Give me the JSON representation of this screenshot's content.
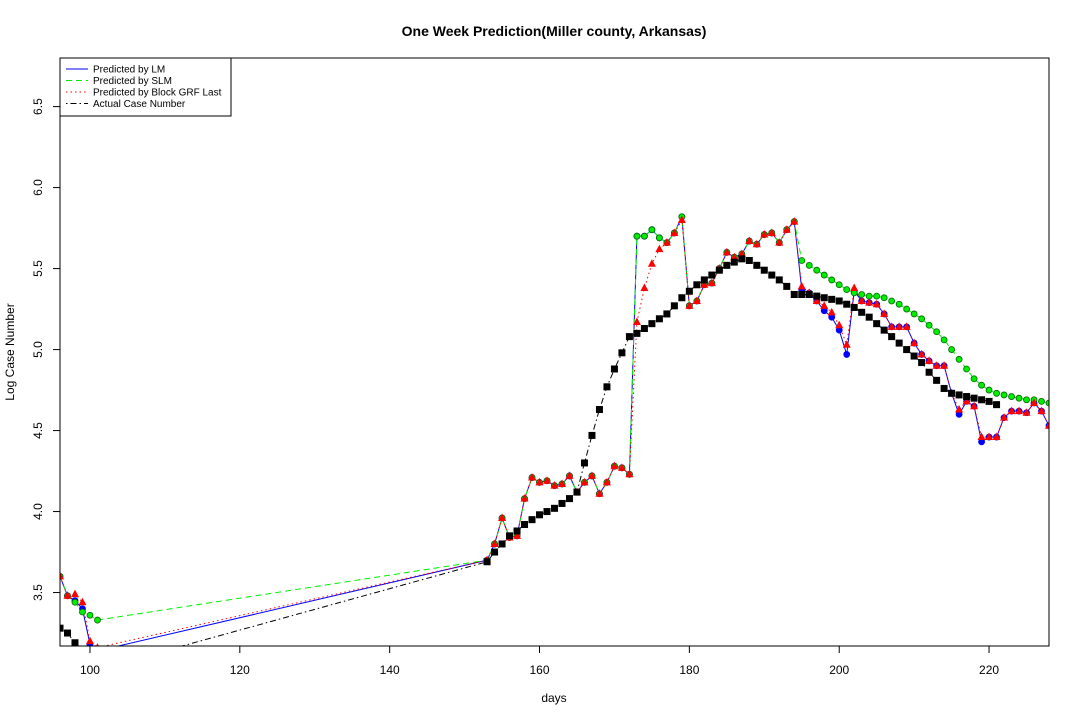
{
  "chart_data": {
    "type": "line",
    "title": "One Week Prediction(Miller county, Arkansas)",
    "x_label": "days",
    "y_label": "Log Case Number",
    "xlim": [
      96,
      228
    ],
    "ylim": [
      3.17,
      6.8
    ],
    "xticks": [
      100,
      120,
      140,
      160,
      180,
      200,
      220
    ],
    "yticks": [
      3.5,
      {
        "value": 4,
        "label": "4.0"
      },
      4.5,
      {
        "value": 5,
        "label": "5.0"
      },
      5.5,
      {
        "value": 6,
        "label": "6.0"
      },
      6.5
    ],
    "legend": "topleft",
    "series": [
      {
        "name": "Predicted by LM",
        "color": "#0000ff",
        "line_style": "solid",
        "marker": "circle",
        "x": [
          96,
          97,
          98,
          99,
          100,
          101,
          153,
          154,
          155,
          156,
          157,
          158,
          159,
          160,
          161,
          162,
          163,
          164,
          165,
          166,
          167,
          168,
          169,
          170,
          171,
          172,
          173,
          174,
          175,
          176,
          177,
          178,
          179,
          180,
          181,
          182,
          183,
          184,
          185,
          186,
          187,
          188,
          189,
          190,
          191,
          192,
          193,
          194,
          195,
          196,
          197,
          198,
          199,
          200,
          201,
          202,
          203,
          204,
          205,
          206,
          207,
          208,
          209,
          210,
          211,
          212,
          213,
          214,
          215,
          216,
          217,
          218,
          219,
          220,
          221,
          222,
          223,
          224,
          225,
          226,
          227,
          228
        ],
        "values": [
          3.6,
          3.48,
          3.45,
          3.4,
          3.18,
          3.14,
          3.7,
          3.8,
          3.96,
          3.84,
          3.85,
          4.08,
          4.21,
          4.18,
          4.19,
          4.16,
          4.17,
          4.22,
          4.12,
          4.18,
          4.22,
          4.11,
          4.18,
          4.28,
          4.27,
          4.23,
          5.7,
          5.7,
          5.74,
          5.69,
          5.66,
          5.72,
          5.82,
          5.27,
          5.3,
          5.4,
          5.41,
          5.5,
          5.6,
          5.57,
          5.59,
          5.67,
          5.65,
          5.71,
          5.72,
          5.66,
          5.74,
          5.79,
          5.37,
          5.35,
          5.3,
          5.24,
          5.2,
          5.12,
          4.97,
          5.36,
          5.3,
          5.29,
          5.28,
          5.22,
          5.14,
          5.14,
          5.14,
          5.04,
          4.97,
          4.93,
          4.9,
          4.9,
          4.73,
          4.6,
          4.68,
          4.65,
          4.43,
          4.46,
          4.46,
          4.58,
          4.62,
          4.62,
          4.61,
          4.67,
          4.62,
          4.53
        ]
      },
      {
        "name": "Predicted by SLM",
        "color": "#00ee00",
        "line_style": "dashed",
        "marker": "circle",
        "x": [
          96,
          97,
          98,
          99,
          100,
          101,
          153,
          154,
          155,
          156,
          157,
          158,
          159,
          160,
          161,
          162,
          163,
          164,
          165,
          166,
          167,
          168,
          169,
          170,
          171,
          172,
          173,
          174,
          175,
          176,
          177,
          178,
          179,
          180,
          181,
          182,
          183,
          184,
          185,
          186,
          187,
          188,
          189,
          190,
          191,
          192,
          193,
          194,
          195,
          196,
          197,
          198,
          199,
          200,
          201,
          202,
          203,
          204,
          205,
          206,
          207,
          208,
          209,
          210,
          211,
          212,
          213,
          214,
          215,
          216,
          217,
          218,
          219,
          220,
          221,
          222,
          223,
          224,
          225,
          226,
          227,
          228
        ],
        "values": [
          3.6,
          3.48,
          3.44,
          3.38,
          3.36,
          3.33,
          3.7,
          3.8,
          3.96,
          3.84,
          3.85,
          4.08,
          4.21,
          4.18,
          4.19,
          4.16,
          4.17,
          4.22,
          4.12,
          4.18,
          4.22,
          4.11,
          4.18,
          4.28,
          4.27,
          4.23,
          5.7,
          5.7,
          5.74,
          5.69,
          5.66,
          5.72,
          5.82,
          5.27,
          5.3,
          5.4,
          5.41,
          5.5,
          5.6,
          5.57,
          5.59,
          5.67,
          5.65,
          5.71,
          5.72,
          5.66,
          5.74,
          5.79,
          5.55,
          5.52,
          5.49,
          5.46,
          5.43,
          5.4,
          5.37,
          5.35,
          5.34,
          5.33,
          5.33,
          5.32,
          5.3,
          5.28,
          5.25,
          5.22,
          5.19,
          5.15,
          5.11,
          5.06,
          5.0,
          4.94,
          4.88,
          4.82,
          4.78,
          4.75,
          4.73,
          4.72,
          4.71,
          4.7,
          4.69,
          4.69,
          4.68,
          4.67
        ]
      },
      {
        "name": "Predicted by Block GRF Last",
        "color": "#ff0000",
        "line_style": "dotted",
        "marker": "triangle",
        "x": [
          96,
          97,
          98,
          99,
          100,
          101,
          153,
          154,
          155,
          156,
          157,
          158,
          159,
          160,
          161,
          162,
          163,
          164,
          165,
          166,
          167,
          168,
          169,
          170,
          171,
          172,
          173,
          174,
          175,
          176,
          177,
          178,
          179,
          180,
          181,
          182,
          183,
          184,
          185,
          186,
          187,
          188,
          189,
          190,
          191,
          192,
          193,
          194,
          195,
          196,
          197,
          198,
          199,
          200,
          201,
          202,
          203,
          204,
          205,
          206,
          207,
          208,
          209,
          210,
          211,
          212,
          213,
          214,
          215,
          216,
          217,
          218,
          219,
          220,
          221,
          222,
          223,
          224,
          225,
          226,
          227,
          228
        ],
        "values": [
          3.6,
          3.48,
          3.49,
          3.44,
          3.2,
          3.16,
          3.7,
          3.8,
          3.96,
          3.84,
          3.85,
          4.08,
          4.21,
          4.18,
          4.19,
          4.16,
          4.17,
          4.22,
          4.12,
          4.18,
          4.22,
          4.11,
          4.18,
          4.28,
          4.27,
          4.23,
          5.17,
          5.38,
          5.53,
          5.62,
          5.66,
          5.72,
          5.8,
          5.27,
          5.3,
          5.4,
          5.41,
          5.5,
          5.6,
          5.57,
          5.59,
          5.67,
          5.65,
          5.71,
          5.72,
          5.66,
          5.74,
          5.79,
          5.39,
          5.35,
          5.3,
          5.27,
          5.23,
          5.15,
          5.03,
          5.38,
          5.3,
          5.29,
          5.28,
          5.22,
          5.14,
          5.14,
          5.14,
          5.04,
          4.97,
          4.93,
          4.9,
          4.9,
          4.73,
          4.63,
          4.68,
          4.65,
          4.46,
          4.46,
          4.46,
          4.58,
          4.62,
          4.62,
          4.61,
          4.67,
          4.62,
          4.53
        ]
      },
      {
        "name": "Actual Case Number",
        "color": "#000000",
        "line_style": "dotdash",
        "marker": "square",
        "x": [
          96,
          97,
          98,
          99,
          153,
          154,
          155,
          156,
          157,
          158,
          159,
          160,
          161,
          162,
          163,
          164,
          165,
          166,
          167,
          168,
          169,
          170,
          171,
          172,
          173,
          174,
          175,
          176,
          177,
          178,
          179,
          180,
          181,
          182,
          183,
          184,
          185,
          186,
          187,
          188,
          189,
          190,
          191,
          192,
          193,
          194,
          195,
          196,
          197,
          198,
          199,
          200,
          201,
          202,
          203,
          204,
          205,
          206,
          207,
          208,
          209,
          210,
          211,
          212,
          213,
          214,
          215,
          216,
          217,
          218,
          219,
          220,
          221
        ],
        "values": [
          3.28,
          3.25,
          3.19,
          3.0,
          3.69,
          3.75,
          3.8,
          3.85,
          3.88,
          3.92,
          3.95,
          3.98,
          4.0,
          4.02,
          4.05,
          4.08,
          4.12,
          4.3,
          4.47,
          4.63,
          4.77,
          4.88,
          4.98,
          5.08,
          5.1,
          5.13,
          5.16,
          5.19,
          5.22,
          5.27,
          5.32,
          5.36,
          5.4,
          5.43,
          5.46,
          5.49,
          5.52,
          5.54,
          5.56,
          5.55,
          5.52,
          5.49,
          5.46,
          5.43,
          5.39,
          5.34,
          5.34,
          5.34,
          5.33,
          5.32,
          5.31,
          5.3,
          5.28,
          5.26,
          5.23,
          5.2,
          5.16,
          5.12,
          5.08,
          5.04,
          5.0,
          4.96,
          4.92,
          4.86,
          4.81,
          4.76,
          4.73,
          4.72,
          4.71,
          4.7,
          4.69,
          4.68,
          4.66
        ]
      }
    ]
  }
}
